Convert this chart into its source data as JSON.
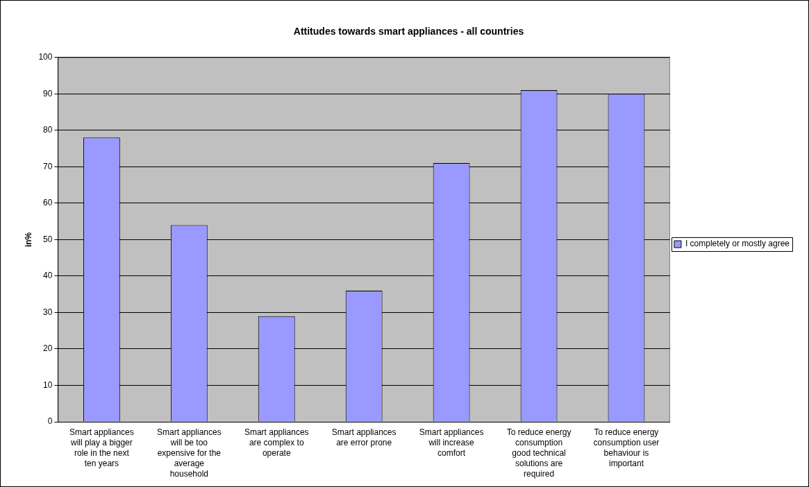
{
  "chart_data": {
    "type": "bar",
    "title": "Attitudes towards smart appliances - all countries",
    "ylabel": "in%",
    "categories": [
      "Smart appliances will play a bigger role in the next ten years",
      "Smart appliances will be too expensive for the average household",
      "Smart appliances are complex to operate",
      "Smart appliances are error prone",
      "Smart appliances will increase comfort",
      "To reduce energy consumption good technical solutions are required",
      "To reduce energy consumption user behaviour is important"
    ],
    "series": [
      {
        "name": "I completely or mostly agree",
        "color": "#9999ff",
        "values": [
          78,
          54,
          29,
          36,
          71,
          91,
          90
        ]
      }
    ],
    "ylim": [
      0,
      100
    ],
    "yticks": [
      0,
      10,
      20,
      30,
      40,
      50,
      60,
      70,
      80,
      90,
      100
    ],
    "grid": "y",
    "legend": "right"
  }
}
